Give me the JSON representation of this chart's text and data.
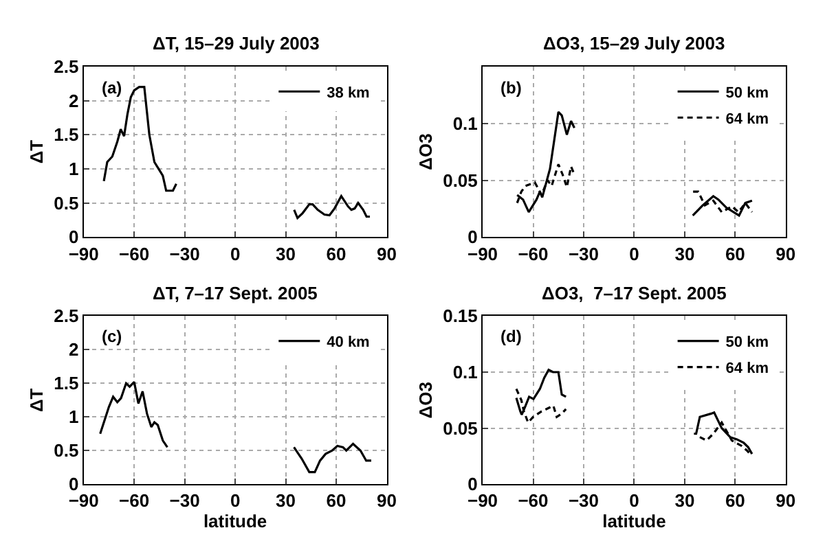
{
  "chart_data": [
    {
      "type": "line",
      "title": "ΔT, 15–29 July 2003",
      "ylabel": "ΔT",
      "annotations": [
        "(a)"
      ],
      "xlim": [
        -90,
        90
      ],
      "xticks": [
        -90,
        -60,
        -30,
        0,
        30,
        60,
        90
      ],
      "ylim": [
        0,
        2.5
      ],
      "yticks": [
        0,
        0.5,
        1,
        1.5,
        2,
        2.5
      ],
      "grid": true,
      "legend": "top right",
      "series": [
        {
          "name": "38 km",
          "color": "#000000",
          "line_style": "solid",
          "x": [
            -78,
            -76,
            -73,
            -70,
            -68,
            -66,
            -64,
            -62,
            -60,
            -57,
            -54,
            -51,
            -48,
            -45,
            -43,
            -41,
            -37,
            -35,
            null,
            35,
            37,
            40,
            44,
            46,
            49,
            53,
            56,
            59,
            63,
            67,
            69,
            71,
            73,
            76,
            78,
            80
          ],
          "values": [
            0.82,
            1.1,
            1.18,
            1.4,
            1.58,
            1.48,
            1.8,
            2.05,
            2.15,
            2.2,
            2.2,
            1.5,
            1.1,
            0.98,
            0.9,
            0.68,
            0.68,
            0.78,
            null,
            0.4,
            0.28,
            0.35,
            0.48,
            0.48,
            0.4,
            0.33,
            0.32,
            0.42,
            0.6,
            0.45,
            0.4,
            0.42,
            0.5,
            0.4,
            0.3,
            0.3
          ]
        }
      ]
    },
    {
      "type": "line",
      "title": "ΔO3, 15–29 July 2003",
      "ylabel": "ΔO3",
      "annotations": [
        "(b)"
      ],
      "xlim": [
        -90,
        90
      ],
      "xticks": [
        -90,
        -60,
        -30,
        0,
        30,
        60,
        90
      ],
      "ylim": [
        0,
        0.15
      ],
      "yticks": [
        0,
        0.05,
        0.1
      ],
      "grid": true,
      "legend": "top right",
      "series": [
        {
          "name": "50 km",
          "color": "#000000",
          "line_style": "solid",
          "x": [
            -69.5,
            -66,
            -62.6,
            -58,
            -56,
            -54.6,
            -50,
            -47.5,
            -45,
            -43,
            -40,
            -37.5,
            -35.5,
            null,
            34.8,
            40.8,
            47,
            50,
            54.7,
            62.3,
            66,
            70
          ],
          "values": [
            0.037,
            0.033,
            0.022,
            0.033,
            0.04,
            0.035,
            0.06,
            0.085,
            0.11,
            0.107,
            0.09,
            0.102,
            0.096,
            null,
            0.019,
            0.028,
            0.036,
            0.033,
            0.026,
            0.019,
            0.03,
            0.032
          ]
        },
        {
          "name": "64 km",
          "color": "#000000",
          "line_style": "dashed",
          "x": [
            -69.5,
            -67,
            -64.5,
            -59,
            -55,
            -51.5,
            -49,
            -45,
            -42.5,
            -40,
            -37.5,
            -35.5,
            null,
            35,
            38,
            42,
            47,
            52,
            58,
            62,
            66,
            70
          ],
          "values": [
            0.03,
            0.04,
            0.045,
            0.048,
            0.037,
            0.05,
            0.045,
            0.064,
            0.055,
            0.044,
            0.062,
            0.055,
            null,
            0.04,
            0.04,
            0.028,
            0.032,
            0.022,
            0.027,
            0.022,
            0.03,
            0.022
          ]
        }
      ]
    },
    {
      "type": "line",
      "title": "ΔT, 7–17 Sept. 2005",
      "xlabel": "latitude",
      "ylabel": "ΔT",
      "annotations": [
        "(c)"
      ],
      "xlim": [
        -90,
        90
      ],
      "xticks": [
        -90,
        -60,
        -30,
        0,
        30,
        60,
        90
      ],
      "ylim": [
        0,
        2.5
      ],
      "yticks": [
        0,
        0.5,
        1,
        1.5,
        2,
        2.5
      ],
      "grid": true,
      "legend": "top right",
      "series": [
        {
          "name": "40 km",
          "color": "#000000",
          "line_style": "solid",
          "x": [
            -80.2,
            -77.6,
            -75,
            -72.5,
            -70,
            -67.8,
            -64.8,
            -62.7,
            -60,
            -57.5,
            -55,
            -52.4,
            -49.8,
            -48,
            -46,
            -43,
            -40.3,
            null,
            34.9,
            39.5,
            44,
            47.3,
            50.4,
            53.7,
            57.6,
            60.7,
            64,
            66,
            70,
            74.4,
            77.8,
            80.8
          ],
          "values": [
            0.75,
            0.95,
            1.15,
            1.3,
            1.22,
            1.28,
            1.5,
            1.45,
            1.52,
            1.2,
            1.38,
            1.05,
            0.85,
            0.92,
            0.88,
            0.65,
            0.55,
            null,
            0.55,
            0.38,
            0.18,
            0.18,
            0.35,
            0.45,
            0.5,
            0.57,
            0.55,
            0.5,
            0.6,
            0.5,
            0.35,
            0.35
          ]
        }
      ]
    },
    {
      "type": "line",
      "title": "ΔO3,  7–17 Sept. 2005",
      "xlabel": "latitude",
      "ylabel": "ΔO3",
      "annotations": [
        "(d)"
      ],
      "xlim": [
        -90,
        90
      ],
      "xticks": [
        -90,
        -60,
        -30,
        0,
        30,
        60,
        90
      ],
      "ylim": [
        0,
        0.15
      ],
      "yticks": [
        0,
        0.05,
        0.1,
        0.15
      ],
      "grid": true,
      "legend": "top right",
      "series": [
        {
          "name": "50 km",
          "color": "#000000",
          "line_style": "solid",
          "x": [
            -70,
            -67.6,
            -66.8,
            -64.5,
            -62.4,
            -59.8,
            -56,
            -53.4,
            -50.8,
            -48.2,
            -45,
            -43,
            -40.5,
            null,
            35.5,
            36.8,
            39,
            45.8,
            47.5,
            52,
            57,
            61,
            65,
            67.7,
            70
          ],
          "values": [
            0.077,
            0.065,
            0.062,
            0.07,
            0.078,
            0.076,
            0.085,
            0.095,
            0.102,
            0.1,
            0.1,
            0.08,
            0.078,
            null,
            0.045,
            0.045,
            0.06,
            0.063,
            0.064,
            0.05,
            0.042,
            0.04,
            0.037,
            0.033,
            0.027
          ]
        },
        {
          "name": "64 km",
          "color": "#000000",
          "line_style": "dashed",
          "x": [
            -70,
            -67,
            -65.5,
            -63,
            -60,
            -55,
            -48,
            -46,
            -43,
            -40.5,
            null,
            39,
            43,
            47,
            52,
            58,
            64,
            67,
            69.5
          ],
          "values": [
            0.085,
            0.075,
            0.065,
            0.055,
            0.06,
            0.065,
            0.07,
            0.06,
            0.063,
            0.067,
            null,
            0.042,
            0.039,
            0.045,
            0.055,
            0.039,
            0.034,
            0.03,
            0.026
          ]
        }
      ]
    }
  ]
}
